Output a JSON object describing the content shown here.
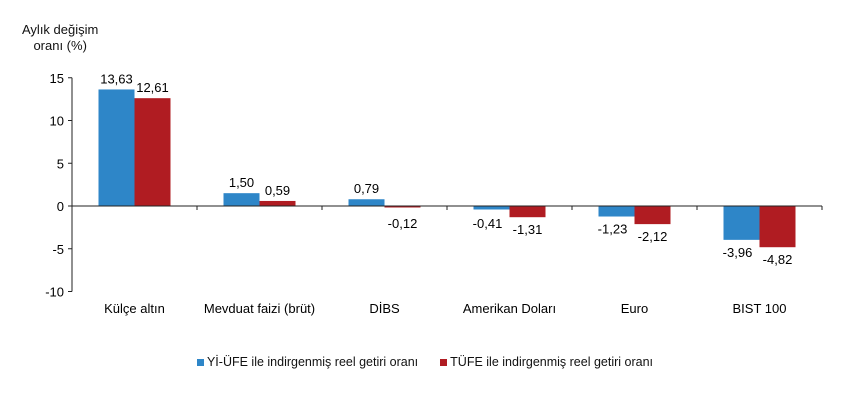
{
  "chart_data": {
    "type": "bar",
    "ylabel": "Aylık değişim oranı (%)",
    "ylabel_lines": [
      "Aylık değişim",
      "oranı (%)"
    ],
    "ylim": [
      -10,
      15
    ],
    "yticks": [
      15,
      10,
      5,
      0,
      -5,
      -10
    ],
    "ytick_labels": [
      "15",
      "10",
      "5",
      "0",
      "-5",
      "-10"
    ],
    "grid": false,
    "legend_position": "bottom",
    "categories": [
      "Külçe altın",
      "Mevduat faizi (brüt)",
      "DİBS",
      "Amerikan Doları",
      "Euro",
      "BIST 100"
    ],
    "series": [
      {
        "name": "Yİ-ÜFE ile indirgenmiş reel getiri oranı",
        "color": "#2e86c8",
        "values": [
          13.63,
          1.5,
          0.79,
          -0.41,
          -1.23,
          -3.96
        ],
        "labels": [
          "13,63",
          "1,50",
          "0,79",
          "-0,41",
          "-1,23",
          "-3,96"
        ]
      },
      {
        "name": "TÜFE ile indirgenmiş reel getiri oranı",
        "color": "#b01c22",
        "values": [
          12.61,
          0.59,
          -0.12,
          -1.31,
          -2.12,
          -4.82
        ],
        "labels": [
          "12,61",
          "0,59",
          "-0,12",
          "-1,31",
          "-2,12",
          "-4,82"
        ]
      }
    ]
  }
}
